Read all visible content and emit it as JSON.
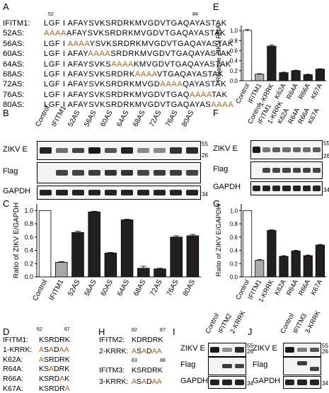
{
  "panels": {
    "A": "A",
    "B": "B",
    "C": "C",
    "D": "D",
    "E": "E",
    "F": "F",
    "G": "G",
    "H": "H",
    "I": "I",
    "J": "J"
  },
  "panel_a": {
    "pos_start": "52",
    "pos_end": "84",
    "rows": [
      {
        "label": "IFITM1:",
        "pre": "LGF I AFAYSVKSRDRKMVGDVTGAQAYASTAK",
        "mut": "",
        "post": ""
      },
      {
        "label": "52AS:",
        "pre": "",
        "mut": "AAAA",
        "post": "AFAYSVKSRDRKMVGDVTGAQAYASTAK"
      },
      {
        "label": "56AS:",
        "pre": "LGF I ",
        "mut": "AAAA",
        "post": "YSVKSRDRKMVGDVTGAQAYASTAK"
      },
      {
        "label": "60AS:",
        "pre": "LGF I AFAY",
        "mut": "AAAA",
        "post": "SRDRKMVGDVTGAQAYASTAK"
      },
      {
        "label": "64AS:",
        "pre": "LGF I AFAYSVKS",
        "mut": "AAAA",
        "post": "KMVGDVTGAQAYASTAK"
      },
      {
        "label": "68AS:",
        "pre": "LGF I AFAYSVKSRDRK",
        "mut": "AAAA",
        "post": "VTGAQAYASTAK"
      },
      {
        "label": "72AS:",
        "pre": "LGF I AFAYSVKSRDRKMVGD",
        "mut": "AAAA",
        "post": "QAYASTAK"
      },
      {
        "label": "76AS:",
        "pre": "LGF I AFAYSVKSRDRKMVGDVTGAQ",
        "mut": "AAAA",
        "post": "TAK"
      },
      {
        "label": "80AS:",
        "pre": "LGF I AFAYSVKSRDRKMVGDVTGAQAYAS",
        "mut": "AAAA",
        "post": ""
      }
    ]
  },
  "panel_b": {
    "lanes": [
      "Control",
      "IFITM1",
      "52AS",
      "56AS",
      "60AS",
      "64AS",
      "68AS",
      "72AS",
      "76AS",
      "80AS"
    ],
    "rows": [
      "ZIKV E",
      "Flag",
      "GAPDH"
    ],
    "mw": [
      "55",
      "26",
      "34"
    ]
  },
  "panel_c": {
    "chart_data": {
      "type": "bar",
      "categories": [
        "Control",
        "IFITM1",
        "52AS",
        "56AS",
        "60AS",
        "64AS",
        "68AS",
        "72AS",
        "76AS",
        "80AS"
      ],
      "values": [
        1.0,
        0.22,
        0.67,
        0.98,
        0.36,
        0.86,
        0.13,
        0.12,
        0.6,
        0.62
      ],
      "errors": [
        0,
        0.01,
        0.02,
        0.01,
        0.01,
        0.01,
        0.03,
        0.01,
        0.02,
        0.02
      ],
      "colors": [
        "#ffffff",
        "#a9a9a9",
        "#231f20",
        "#231f20",
        "#231f20",
        "#231f20",
        "#231f20",
        "#231f20",
        "#231f20",
        "#231f20"
      ],
      "ylabel": "Ratio of ZIKV E/GAPDH",
      "yticks": [
        "0.0",
        "0.2",
        "0.4",
        "0.6",
        "0.8",
        "1.0"
      ],
      "ylim": [
        0,
        1.1
      ]
    }
  },
  "panel_d": {
    "pos_start": "62",
    "pos_end": "67",
    "rows": [
      {
        "label": "IFITM1:",
        "pre": "KSRDRK",
        "mut": "",
        "post": ""
      },
      {
        "label": "1-KRRK:",
        "pre": "",
        "mut": "A",
        "post": "S",
        "mut2": "A",
        "post2": "D",
        "mut3": "AA",
        "post3": ""
      },
      {
        "label": "K62A:",
        "pre": "",
        "mut": "A",
        "post": "SRDRK"
      },
      {
        "label": "R64A:",
        "pre": "KS",
        "mut": "A",
        "post": "DRK"
      },
      {
        "label": "R66A:",
        "pre": "KSRD",
        "mut": "A",
        "post": "K"
      },
      {
        "label": "K67A:",
        "pre": "KSRDR",
        "mut": "A",
        "post": ""
      }
    ]
  },
  "panel_e": {
    "chart_data": {
      "type": "bar",
      "categories": [
        "Control",
        "IFITM1",
        "1-KRRK",
        "K62A",
        "R64A",
        "R66A",
        "K67A"
      ],
      "values": [
        1.0,
        0.13,
        0.69,
        0.16,
        0.2,
        0.12,
        0.23
      ],
      "errors": [
        0.02,
        0.01,
        0.02,
        0.01,
        0.01,
        0.01,
        0.01
      ],
      "colors": [
        "#ffffff",
        "#a9a9a9",
        "#231f20",
        "#231f20",
        "#231f20",
        "#231f20",
        "#231f20"
      ],
      "ylabel": "Relative ZIKV RNA",
      "yticks": [
        "0.0",
        "0.2",
        "0.4",
        "0.6",
        "0.8",
        "1.0"
      ],
      "ylim": [
        0,
        1.1
      ]
    }
  },
  "panel_f": {
    "lanes": [
      "Control",
      "IFITM1",
      "1-KRRK",
      "K62A",
      "R64A",
      "R66A",
      "K67A"
    ],
    "rows": [
      "ZIKV E",
      "Flag",
      "GAPDH"
    ],
    "mw": [
      "55",
      "26",
      "34"
    ]
  },
  "panel_g": {
    "chart_data": {
      "type": "bar",
      "categories": [
        "Control",
        "IFITM1",
        "1-KRRK",
        "K62A",
        "R64A",
        "R66A",
        "K67A"
      ],
      "values": [
        1.0,
        0.25,
        0.7,
        0.31,
        0.39,
        0.32,
        0.48
      ],
      "errors": [
        0,
        0.01,
        0.01,
        0.01,
        0.01,
        0.01,
        0.01
      ],
      "colors": [
        "#ffffff",
        "#a9a9a9",
        "#231f20",
        "#231f20",
        "#231f20",
        "#231f20",
        "#231f20"
      ],
      "ylabel": "Ratio of ZIKV E/GAPDH",
      "yticks": [
        "0.0",
        "0.2",
        "0.4",
        "0.6",
        "0.8",
        "1.0"
      ],
      "ylim": [
        0,
        1.1
      ]
    }
  },
  "panel_h": {
    "rows": [
      {
        "pos_start": "82",
        "pos_end": "87",
        "label": "IFITM2:",
        "pre": "KDRDRK",
        "mut": ""
      },
      {
        "label": "2-KRRK:",
        "seq": "ASADAA"
      },
      {
        "pos_start": "83",
        "pos_end": "88",
        "label": "IFITM3:",
        "pre": "KSRDRK",
        "mut": ""
      },
      {
        "label": "3-KRRK:",
        "seq": "ASADAA"
      }
    ]
  },
  "panel_i": {
    "lanes": [
      "Control",
      "IFITM2",
      "2-KRRK"
    ],
    "rows": [
      "ZIKV E",
      "Flag",
      "GAPDH"
    ],
    "mw": [
      "55",
      "26",
      "34"
    ]
  },
  "panel_j": {
    "lanes": [
      "Control",
      "IFITM3",
      "3-KRRK"
    ],
    "rows": [
      "ZIKV E",
      "Flag",
      "GAPDH"
    ],
    "mw": [
      "55",
      "26",
      "34"
    ]
  }
}
